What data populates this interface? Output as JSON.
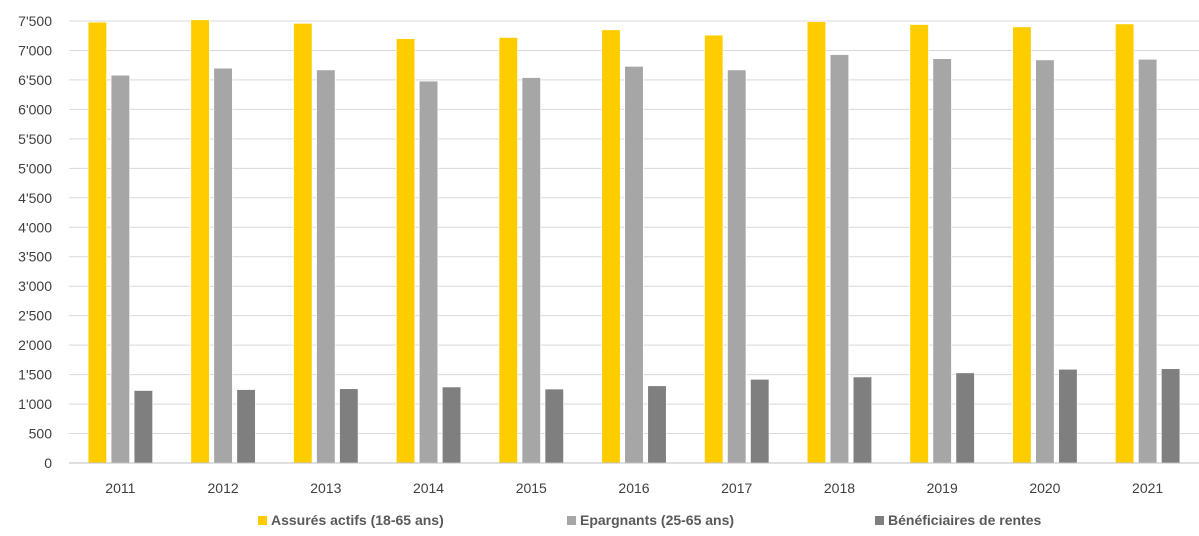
{
  "chart_data": {
    "type": "bar",
    "title": "",
    "xlabel": "",
    "ylabel": "",
    "ylim": [
      0,
      7500
    ],
    "ytick_values": [
      0,
      500,
      1000,
      1500,
      2000,
      2500,
      3000,
      3500,
      4000,
      4500,
      5000,
      5500,
      6000,
      6500,
      7000,
      7500
    ],
    "ytick_labels": [
      "0",
      "500",
      "1'000",
      "1'500",
      "2'000",
      "2'500",
      "3'000",
      "3'500",
      "4'000",
      "4'500",
      "5'000",
      "5'500",
      "6'000",
      "6'500",
      "7'000",
      "7'500"
    ],
    "categories": [
      "2011",
      "2012",
      "2013",
      "2014",
      "2015",
      "2016",
      "2017",
      "2018",
      "2019",
      "2020",
      "2021"
    ],
    "grid": true,
    "legend_position": "bottom",
    "series": [
      {
        "name": "Assurés actifs (18-65 ans)",
        "color": "#FFCC00",
        "values": [
          7480,
          7520,
          7460,
          7200,
          7220,
          7350,
          7260,
          7490,
          7440,
          7400,
          7450
        ]
      },
      {
        "name": "Epargnants (25-65 ans)",
        "color": "#A6A6A6",
        "values": [
          6580,
          6700,
          6670,
          6480,
          6540,
          6730,
          6670,
          6930,
          6860,
          6840,
          6850
        ]
      },
      {
        "name": "Bénéficiaires de rentes",
        "color": "#7F7F7F",
        "values": [
          1230,
          1245,
          1260,
          1290,
          1255,
          1310,
          1420,
          1460,
          1530,
          1590,
          1600
        ]
      }
    ]
  }
}
